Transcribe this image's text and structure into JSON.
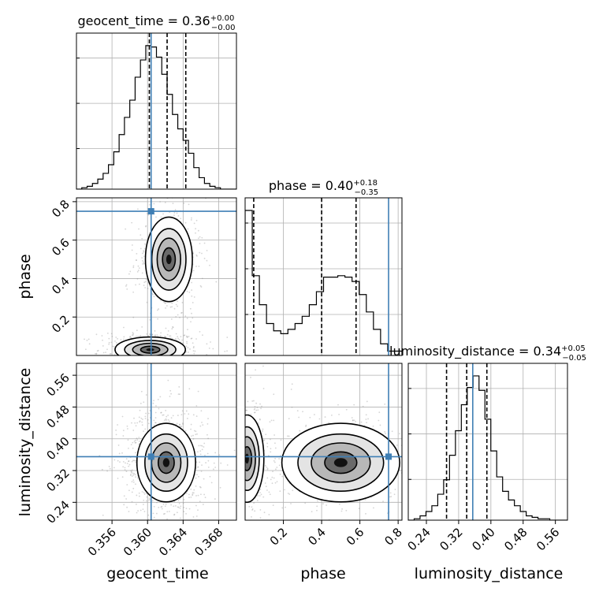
{
  "chart_data": {
    "type": "corner",
    "parameters": [
      "geocent_time",
      "phase",
      "luminosity_distance"
    ],
    "truth": {
      "geocent_time": 0.3604,
      "phase": 0.75,
      "luminosity_distance": 0.355
    },
    "truth_color": "#3f7fb5",
    "hist_color": "#000000",
    "grid": true,
    "diagonal": [
      {
        "parameter": "geocent_time",
        "title_name": "geocent_time",
        "title_value": "0.36",
        "title_plus": "+0.00",
        "title_minus": "−0.00",
        "quantiles": [
          0.3602,
          0.3622,
          0.3643
        ],
        "range": [
          0.352,
          0.37
        ],
        "ticks": [
          0.356,
          0.36,
          0.364,
          0.368
        ],
        "tick_labels": [
          "0.356",
          "0.360",
          "0.364",
          "0.368"
        ],
        "counts": [
          0,
          1,
          2,
          4,
          7,
          11,
          17,
          26,
          38,
          50,
          62,
          78,
          90,
          100,
          99,
          92,
          80,
          66,
          52,
          42,
          34,
          25,
          15,
          8,
          4,
          2,
          1,
          0,
          0,
          0
        ]
      },
      {
        "parameter": "phase",
        "title_name": "phase",
        "title_value": "0.40",
        "title_plus": "+0.18",
        "title_minus": "−0.35",
        "quantiles": [
          0.045,
          0.4,
          0.58
        ],
        "range": [
          0.0,
          0.82
        ],
        "ticks": [
          0.2,
          0.4,
          0.6,
          0.8
        ],
        "tick_labels": [
          "0.2",
          "0.4",
          "0.6",
          "0.8"
        ],
        "counts": [
          100,
          55,
          35,
          22,
          17,
          15,
          18,
          22,
          27,
          35,
          44,
          54,
          54,
          55,
          54,
          51,
          42,
          30,
          18,
          8,
          3,
          3
        ]
      },
      {
        "parameter": "luminosity_distance",
        "title_name": "luminosity_distance",
        "title_value": "0.34",
        "title_plus": "+0.05",
        "title_minus": "−0.05",
        "quantiles": [
          0.29,
          0.34,
          0.39
        ],
        "range": [
          0.195,
          0.59
        ],
        "ticks": [
          0.24,
          0.32,
          0.4,
          0.48,
          0.56
        ],
        "tick_labels": [
          "0.24",
          "0.32",
          "0.40",
          "0.48",
          "0.56"
        ],
        "counts": [
          0,
          1,
          3,
          6,
          10,
          18,
          28,
          45,
          62,
          80,
          92,
          100,
          90,
          70,
          48,
          30,
          20,
          14,
          10,
          6,
          3,
          2,
          1,
          1,
          0,
          0,
          0
        ]
      }
    ],
    "contours": [
      {
        "x": "geocent_time",
        "y": "phase",
        "modes": [
          {
            "cx": 0.3624,
            "cy": 0.5,
            "sx": 0.0012,
            "sy": 0.1
          },
          {
            "cx": 0.3603,
            "cy": 0.03,
            "sx": 0.0018,
            "sy": 0.03
          }
        ]
      },
      {
        "x": "geocent_time",
        "y": "luminosity_distance",
        "modes": [
          {
            "cx": 0.3621,
            "cy": 0.34,
            "sx": 0.0015,
            "sy": 0.045
          }
        ]
      },
      {
        "x": "phase",
        "y": "luminosity_distance",
        "modes": [
          {
            "cx": 0.01,
            "cy": 0.35,
            "sx": 0.04,
            "sy": 0.05
          },
          {
            "cx": 0.5,
            "cy": 0.34,
            "sx": 0.14,
            "sy": 0.045
          }
        ]
      }
    ]
  },
  "axis_labels": {
    "geocent_time": "geocent_time",
    "phase": "phase",
    "luminosity_distance": "luminosity_distance"
  }
}
